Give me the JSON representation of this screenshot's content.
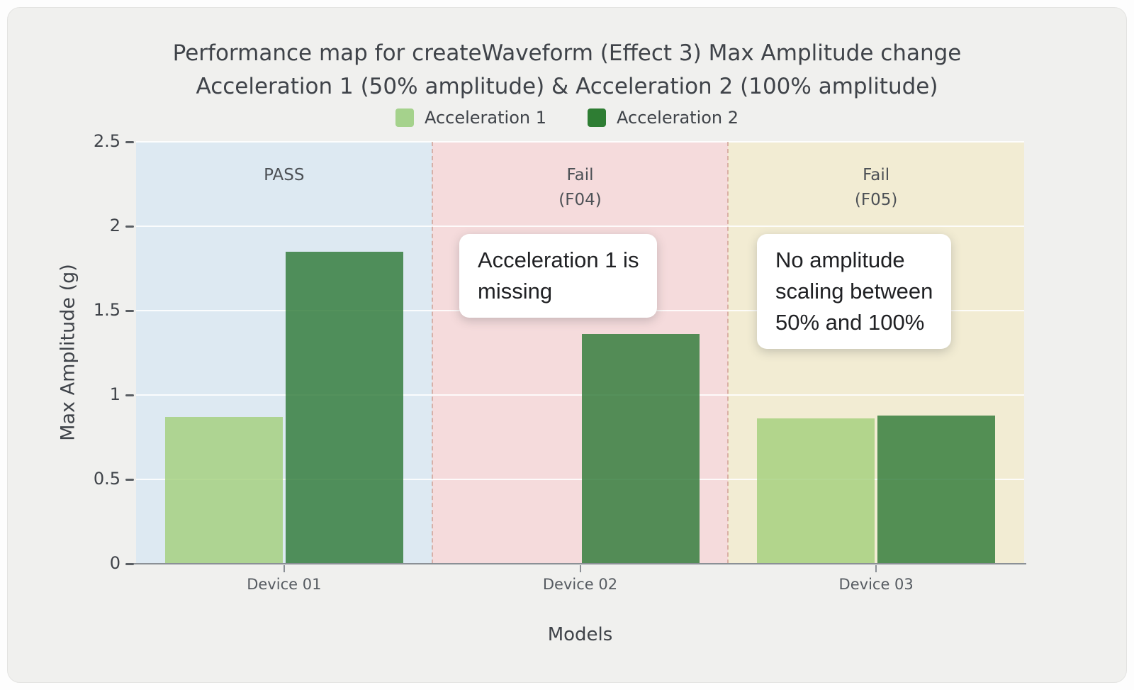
{
  "title": {
    "line1": "Performance map for createWaveform (Effect 3) Max Amplitude change",
    "line2": "Acceleration 1 (50% amplitude) & Acceleration 2 (100% amplitude)"
  },
  "legend": {
    "items": [
      {
        "label": "Acceleration 1",
        "color": "#a5d28c"
      },
      {
        "label": "Acceleration 2",
        "color": "#2e7d33"
      }
    ]
  },
  "chart_data": {
    "type": "bar",
    "title": "Performance map for createWaveform (Effect 3) Max Amplitude change — Acceleration 1 (50% amplitude) & Acceleration 2 (100% amplitude)",
    "xlabel": "Models",
    "ylabel": "Max Amplitude (g)",
    "ylim": [
      0,
      2.5
    ],
    "yticks": [
      0,
      0.5,
      1,
      1.5,
      2,
      2.5
    ],
    "ytick_labels": [
      "0",
      "0.5",
      "1",
      "1.5",
      "2",
      "2.5"
    ],
    "categories": [
      "Device 01",
      "Device 02",
      "Device 03"
    ],
    "series": [
      {
        "name": "Acceleration 1",
        "color": "#a4cf7d",
        "values": [
          0.87,
          null,
          0.86
        ]
      },
      {
        "name": "Acceleration 2",
        "color": "#2f7a38",
        "values": [
          1.85,
          1.36,
          0.88
        ]
      }
    ],
    "regions": [
      {
        "label": "PASS",
        "color": "#dde9f2"
      },
      {
        "label": "Fail\n(F04)",
        "color": "#f5dbdc"
      },
      {
        "label": "Fail\n(F05)",
        "color": "#f2ecd3"
      }
    ],
    "grid": true,
    "legend_position": "top"
  },
  "annotations": [
    {
      "text": "Acceleration 1 is\nmissing"
    },
    {
      "text": "No amplitude\nscaling between\n50% and 100%"
    }
  ]
}
